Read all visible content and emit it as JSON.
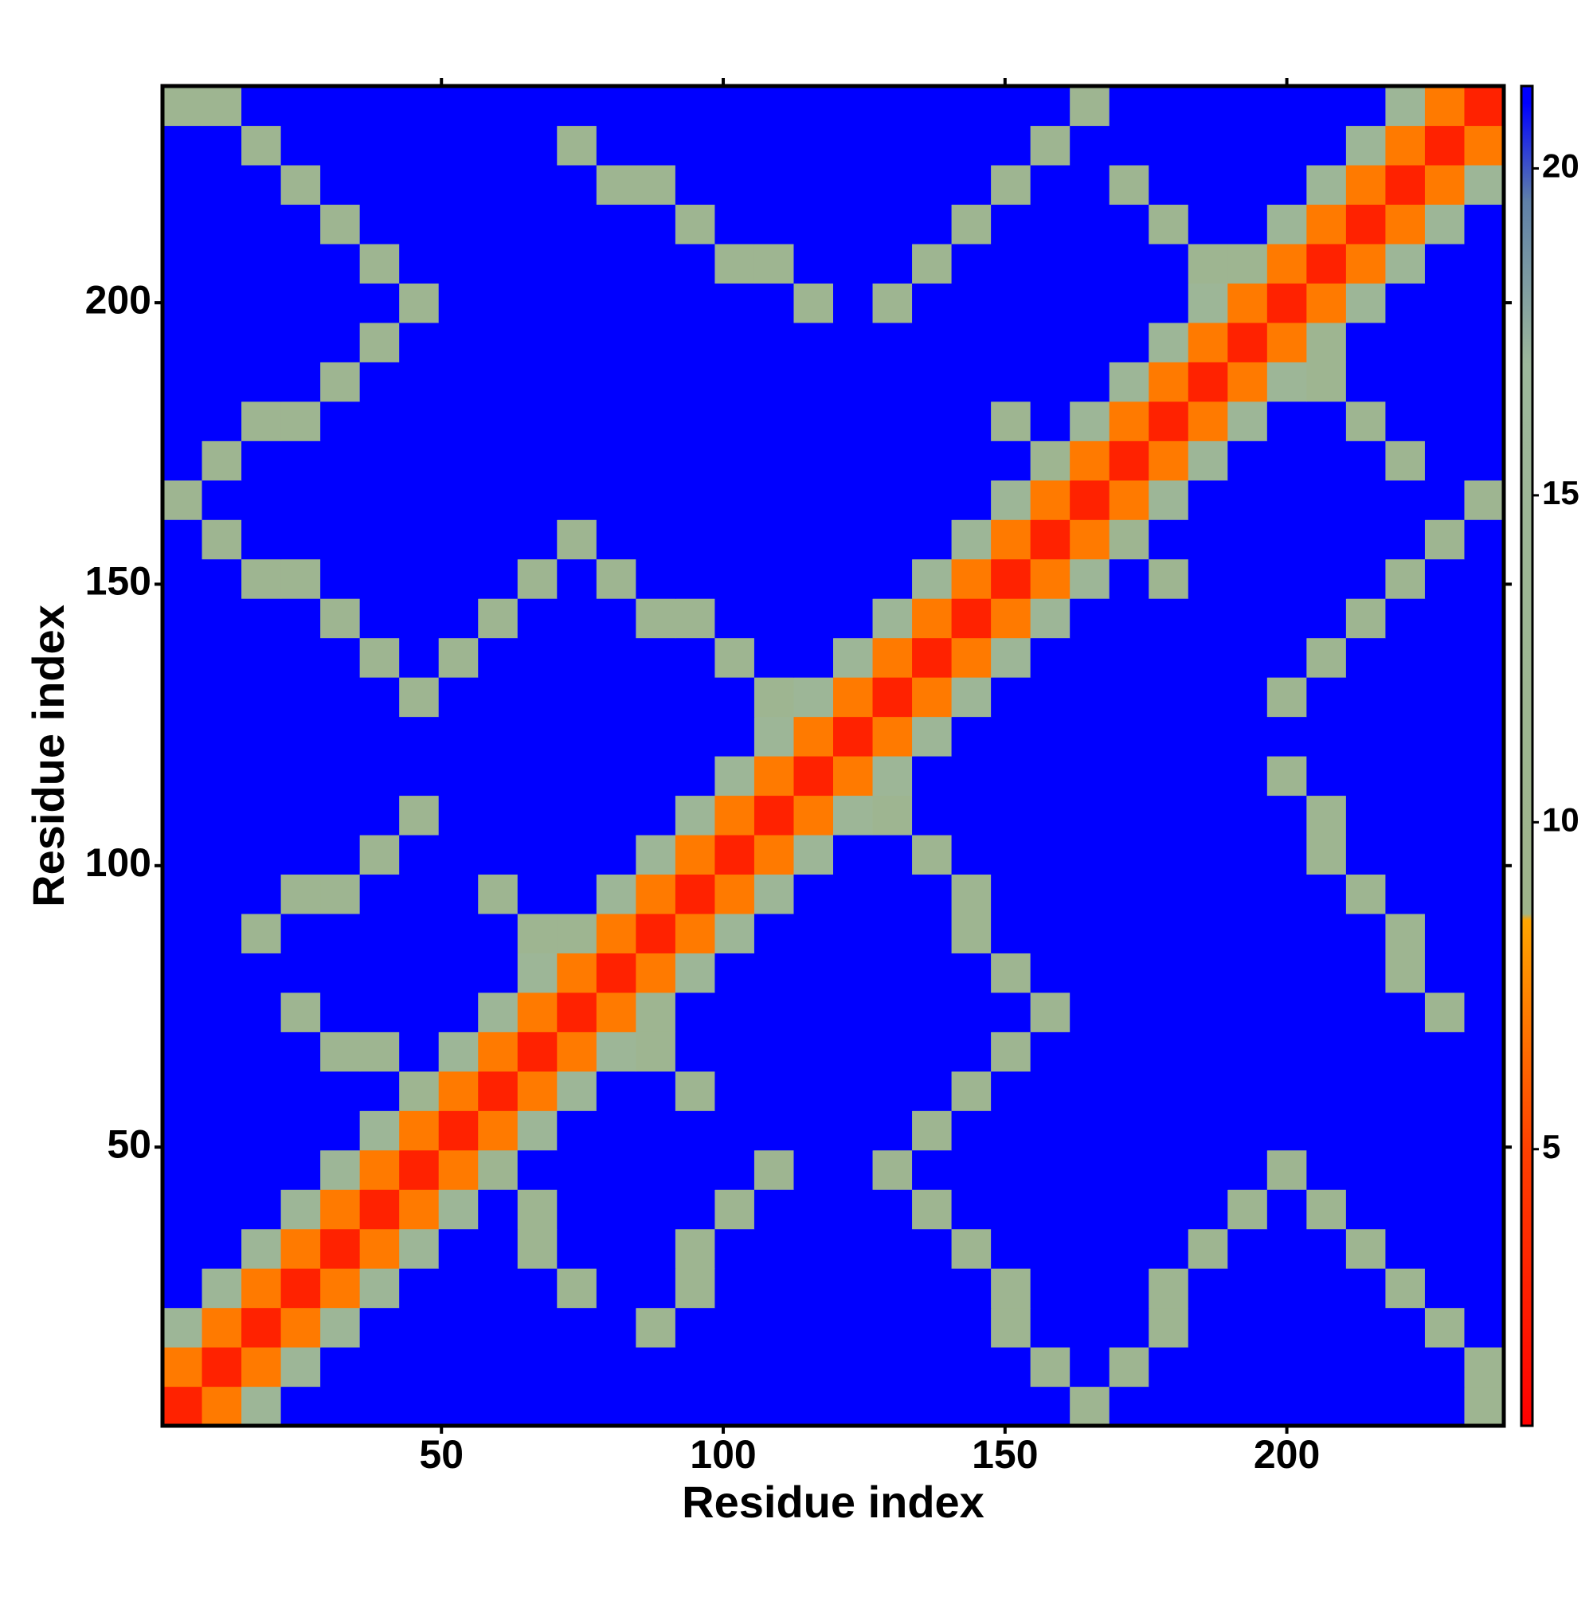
{
  "chart_data": {
    "type": "heatmap",
    "x_label": "Residue index",
    "y_label": "Residue index",
    "xlim": [
      0.5,
      238.5
    ],
    "ylim": [
      0.5,
      238.5
    ],
    "xticks": [
      50,
      100,
      150,
      200
    ],
    "yticks": [
      50,
      100,
      150,
      200
    ],
    "xbins": [
      0.5,
      7.5,
      14.5,
      21.5,
      28.5,
      35.5,
      42.5,
      49.5,
      56.5,
      63.5,
      70.5,
      77.5,
      84.5,
      91.5,
      98.5,
      105.5,
      112.5,
      119.5,
      126.5,
      133.5,
      140.5,
      147.5,
      154.5,
      161.5,
      168.5,
      175.5,
      182.5,
      189.5,
      196.5,
      203.5,
      210.5,
      217.5,
      224.5,
      231.5,
      238.5
    ],
    "ybins": [
      0.5,
      7.5,
      14.5,
      21.5,
      28.5,
      35.5,
      42.5,
      49.5,
      56.5,
      63.5,
      70.5,
      77.5,
      84.5,
      91.5,
      98.5,
      105.5,
      112.5,
      119.5,
      126.5,
      133.5,
      140.5,
      147.5,
      154.5,
      161.5,
      168.5,
      175.5,
      182.5,
      189.5,
      196.5,
      203.5,
      210.5,
      217.5,
      224.5,
      231.5,
      238.5
    ],
    "z": [
      [
        3,
        7,
        15,
        21,
        21,
        21,
        21,
        21,
        21,
        21,
        21,
        21,
        21,
        21,
        21,
        21,
        21,
        21,
        21,
        21,
        21,
        21,
        21,
        12,
        21,
        21,
        21,
        21,
        21,
        21,
        21,
        21,
        21,
        12
      ],
      [
        7,
        3,
        7,
        15,
        21,
        21,
        21,
        21,
        21,
        21,
        21,
        21,
        21,
        21,
        21,
        21,
        21,
        21,
        21,
        21,
        21,
        21,
        12,
        21,
        12,
        21,
        21,
        21,
        21,
        21,
        21,
        21,
        21,
        12
      ],
      [
        15,
        7,
        3,
        7,
        15,
        21,
        21,
        21,
        21,
        21,
        21,
        21,
        12,
        21,
        21,
        21,
        21,
        21,
        21,
        21,
        21,
        12,
        21,
        21,
        21,
        12,
        21,
        21,
        21,
        21,
        21,
        21,
        12,
        21
      ],
      [
        21,
        15,
        7,
        3,
        7,
        15,
        21,
        21,
        21,
        21,
        12,
        21,
        21,
        12,
        21,
        21,
        21,
        21,
        21,
        21,
        21,
        12,
        21,
        21,
        21,
        12,
        21,
        21,
        21,
        21,
        21,
        12,
        21,
        21
      ],
      [
        21,
        21,
        15,
        7,
        3,
        7,
        15,
        21,
        21,
        12,
        21,
        21,
        21,
        12,
        21,
        21,
        21,
        21,
        21,
        21,
        12,
        21,
        21,
        21,
        21,
        21,
        12,
        21,
        21,
        21,
        12,
        21,
        21,
        21
      ],
      [
        21,
        21,
        21,
        15,
        7,
        3,
        7,
        15,
        21,
        12,
        21,
        21,
        21,
        21,
        12,
        21,
        21,
        21,
        21,
        12,
        21,
        21,
        21,
        21,
        21,
        21,
        21,
        12,
        21,
        12,
        21,
        21,
        21,
        21
      ],
      [
        21,
        21,
        21,
        21,
        15,
        7,
        3,
        7,
        12,
        21,
        21,
        21,
        21,
        21,
        21,
        12,
        21,
        21,
        12,
        21,
        21,
        21,
        21,
        21,
        21,
        21,
        21,
        21,
        12,
        21,
        21,
        21,
        21,
        21
      ],
      [
        21,
        21,
        21,
        21,
        21,
        15,
        7,
        3,
        7,
        15,
        21,
        21,
        21,
        21,
        21,
        21,
        21,
        21,
        21,
        12,
        21,
        21,
        21,
        21,
        21,
        21,
        21,
        21,
        21,
        21,
        21,
        21,
        21,
        21
      ],
      [
        21,
        21,
        21,
        21,
        21,
        21,
        12,
        7,
        3,
        7,
        15,
        21,
        21,
        12,
        21,
        21,
        21,
        21,
        21,
        21,
        12,
        21,
        21,
        21,
        21,
        21,
        21,
        21,
        21,
        21,
        21,
        21,
        21,
        21
      ],
      [
        21,
        21,
        21,
        21,
        12,
        12,
        21,
        15,
        7,
        3,
        7,
        15,
        12,
        21,
        21,
        21,
        21,
        21,
        21,
        21,
        21,
        12,
        21,
        21,
        21,
        21,
        21,
        21,
        21,
        21,
        21,
        21,
        21,
        21
      ],
      [
        21,
        21,
        21,
        12,
        21,
        21,
        21,
        21,
        15,
        7,
        3,
        7,
        12,
        21,
        21,
        21,
        21,
        21,
        21,
        21,
        21,
        21,
        12,
        21,
        21,
        21,
        21,
        21,
        21,
        21,
        21,
        21,
        12,
        21
      ],
      [
        21,
        21,
        21,
        21,
        21,
        21,
        21,
        21,
        21,
        15,
        7,
        3,
        7,
        15,
        21,
        21,
        21,
        21,
        21,
        21,
        21,
        12,
        21,
        21,
        21,
        21,
        21,
        21,
        21,
        21,
        21,
        12,
        21,
        21
      ],
      [
        21,
        21,
        12,
        21,
        21,
        21,
        21,
        21,
        21,
        12,
        12,
        7,
        3,
        7,
        15,
        21,
        21,
        21,
        21,
        21,
        12,
        21,
        21,
        21,
        21,
        21,
        21,
        21,
        21,
        21,
        21,
        12,
        21,
        21
      ],
      [
        21,
        21,
        21,
        12,
        12,
        21,
        21,
        21,
        12,
        21,
        21,
        15,
        7,
        3,
        7,
        15,
        21,
        21,
        21,
        21,
        12,
        21,
        21,
        21,
        21,
        21,
        21,
        21,
        21,
        21,
        12,
        21,
        21,
        21
      ],
      [
        21,
        21,
        21,
        21,
        21,
        12,
        21,
        21,
        21,
        21,
        21,
        21,
        15,
        7,
        3,
        7,
        15,
        21,
        21,
        12,
        21,
        21,
        21,
        21,
        21,
        21,
        21,
        21,
        21,
        12,
        21,
        21,
        21,
        21
      ],
      [
        21,
        21,
        21,
        21,
        21,
        21,
        12,
        21,
        21,
        21,
        21,
        21,
        21,
        15,
        7,
        3,
        7,
        15,
        12,
        21,
        21,
        21,
        21,
        21,
        21,
        21,
        21,
        21,
        21,
        12,
        21,
        21,
        21,
        21
      ],
      [
        21,
        21,
        21,
        21,
        21,
        21,
        21,
        21,
        21,
        21,
        21,
        21,
        21,
        21,
        15,
        7,
        3,
        7,
        15,
        21,
        21,
        21,
        21,
        21,
        21,
        21,
        21,
        21,
        12,
        21,
        21,
        21,
        21,
        21
      ],
      [
        21,
        21,
        21,
        21,
        21,
        21,
        21,
        21,
        21,
        21,
        21,
        21,
        21,
        21,
        21,
        15,
        7,
        3,
        7,
        15,
        21,
        21,
        21,
        21,
        21,
        21,
        21,
        21,
        21,
        21,
        21,
        21,
        21,
        21
      ],
      [
        21,
        21,
        21,
        21,
        21,
        21,
        12,
        21,
        21,
        21,
        21,
        21,
        21,
        21,
        21,
        12,
        15,
        7,
        3,
        7,
        15,
        21,
        21,
        21,
        21,
        21,
        21,
        21,
        12,
        21,
        21,
        21,
        21,
        21
      ],
      [
        21,
        21,
        21,
        21,
        21,
        12,
        21,
        12,
        21,
        21,
        21,
        21,
        21,
        21,
        12,
        21,
        21,
        15,
        7,
        3,
        7,
        15,
        21,
        21,
        21,
        21,
        21,
        21,
        21,
        12,
        21,
        21,
        21,
        21
      ],
      [
        21,
        21,
        21,
        21,
        12,
        21,
        21,
        21,
        12,
        21,
        21,
        21,
        12,
        12,
        21,
        21,
        21,
        21,
        15,
        7,
        3,
        7,
        15,
        21,
        21,
        21,
        21,
        21,
        21,
        21,
        12,
        21,
        21,
        21
      ],
      [
        21,
        21,
        12,
        12,
        21,
        21,
        21,
        21,
        21,
        12,
        21,
        12,
        21,
        21,
        21,
        21,
        21,
        21,
        21,
        15,
        7,
        3,
        7,
        15,
        21,
        12,
        21,
        21,
        21,
        21,
        21,
        12,
        21,
        21
      ],
      [
        21,
        12,
        21,
        21,
        21,
        21,
        21,
        21,
        21,
        21,
        12,
        21,
        21,
        21,
        21,
        21,
        21,
        21,
        21,
        21,
        15,
        7,
        3,
        7,
        12,
        21,
        21,
        21,
        21,
        21,
        21,
        21,
        12,
        21
      ],
      [
        12,
        21,
        21,
        21,
        21,
        21,
        21,
        21,
        21,
        21,
        21,
        21,
        21,
        21,
        21,
        21,
        21,
        21,
        21,
        21,
        21,
        15,
        7,
        3,
        7,
        15,
        21,
        21,
        21,
        21,
        21,
        21,
        21,
        12
      ],
      [
        21,
        12,
        21,
        21,
        21,
        21,
        21,
        21,
        21,
        21,
        21,
        21,
        21,
        21,
        21,
        21,
        21,
        21,
        21,
        21,
        21,
        21,
        12,
        7,
        3,
        7,
        15,
        21,
        21,
        21,
        21,
        12,
        21,
        21
      ],
      [
        21,
        21,
        12,
        12,
        21,
        21,
        21,
        21,
        21,
        21,
        21,
        21,
        21,
        21,
        21,
        21,
        21,
        21,
        21,
        21,
        21,
        12,
        21,
        15,
        7,
        3,
        7,
        15,
        21,
        21,
        12,
        21,
        21,
        21
      ],
      [
        21,
        21,
        21,
        21,
        12,
        21,
        21,
        21,
        21,
        21,
        21,
        21,
        21,
        21,
        21,
        21,
        21,
        21,
        21,
        21,
        21,
        21,
        21,
        21,
        15,
        7,
        3,
        7,
        15,
        12,
        21,
        21,
        21,
        21
      ],
      [
        21,
        21,
        21,
        21,
        21,
        12,
        21,
        21,
        21,
        21,
        21,
        21,
        21,
        21,
        21,
        21,
        21,
        21,
        21,
        21,
        21,
        21,
        21,
        21,
        21,
        15,
        7,
        3,
        7,
        12,
        21,
        21,
        21,
        21
      ],
      [
        21,
        21,
        21,
        21,
        21,
        21,
        12,
        21,
        21,
        21,
        21,
        21,
        21,
        21,
        21,
        21,
        12,
        21,
        12,
        21,
        21,
        21,
        21,
        21,
        21,
        21,
        15,
        7,
        3,
        7,
        15,
        21,
        21,
        21
      ],
      [
        21,
        21,
        21,
        21,
        21,
        12,
        21,
        21,
        21,
        21,
        21,
        21,
        21,
        21,
        12,
        12,
        21,
        21,
        21,
        12,
        21,
        21,
        21,
        21,
        21,
        21,
        12,
        12,
        7,
        3,
        7,
        15,
        21,
        21
      ],
      [
        21,
        21,
        21,
        21,
        12,
        21,
        21,
        21,
        21,
        21,
        21,
        21,
        21,
        12,
        21,
        21,
        21,
        21,
        21,
        21,
        12,
        21,
        21,
        21,
        21,
        12,
        21,
        21,
        15,
        7,
        3,
        7,
        15,
        21
      ],
      [
        21,
        21,
        21,
        12,
        21,
        21,
        21,
        21,
        21,
        21,
        21,
        12,
        12,
        21,
        21,
        21,
        21,
        21,
        21,
        21,
        21,
        12,
        21,
        21,
        12,
        21,
        21,
        21,
        21,
        15,
        7,
        3,
        7,
        15
      ],
      [
        21,
        21,
        12,
        21,
        21,
        21,
        21,
        21,
        21,
        21,
        12,
        21,
        21,
        21,
        21,
        21,
        21,
        21,
        21,
        21,
        21,
        21,
        12,
        21,
        21,
        21,
        21,
        21,
        21,
        21,
        15,
        7,
        3,
        7
      ],
      [
        12,
        12,
        21,
        21,
        21,
        21,
        21,
        21,
        21,
        21,
        21,
        21,
        21,
        21,
        21,
        21,
        21,
        21,
        21,
        21,
        21,
        21,
        21,
        12,
        21,
        21,
        21,
        21,
        21,
        21,
        21,
        15,
        7,
        3
      ]
    ],
    "colorscale": [
      [
        0.77,
        "#ff0000"
      ],
      [
        5,
        "#ff4000"
      ],
      [
        8.5,
        "#ffa500"
      ],
      [
        8.6,
        "#9fb48a"
      ],
      [
        17,
        "#9db79b"
      ],
      [
        19.5,
        "#5f80a8"
      ],
      [
        21,
        "#0000ff"
      ],
      [
        21.26,
        "#0000ff"
      ]
    ],
    "colorbar": {
      "clim": [
        0.77,
        21.26
      ],
      "ticks": [
        5,
        10,
        15,
        20
      ]
    }
  }
}
